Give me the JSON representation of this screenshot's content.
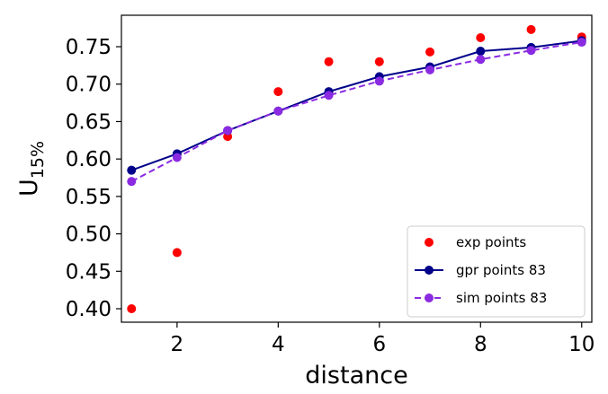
{
  "chart_data": {
    "type": "scatter",
    "xlabel": "distance",
    "ylabel": {
      "base": "U",
      "sub": "15%"
    },
    "xlim": [
      0.9,
      10.2
    ],
    "ylim": [
      0.382,
      0.792
    ],
    "xticks": [
      2,
      4,
      6,
      8,
      10
    ],
    "yticks": [
      0.4,
      0.45,
      0.5,
      0.55,
      0.6,
      0.65,
      0.7,
      0.75
    ],
    "ytick_labels": [
      "0.40",
      "0.45",
      "0.50",
      "0.55",
      "0.60",
      "0.65",
      "0.70",
      "0.75"
    ],
    "grid": false,
    "legend_position": "lower-right",
    "series": [
      {
        "name": "exp points",
        "style": "markers",
        "color": "#ff0000",
        "x": [
          1.1,
          2,
          3,
          4,
          5,
          6,
          7,
          8,
          9,
          10
        ],
        "y": [
          0.4,
          0.475,
          0.63,
          0.69,
          0.73,
          0.73,
          0.743,
          0.762,
          0.773,
          0.763
        ]
      },
      {
        "name": "gpr points 83",
        "style": "solid-line-markers",
        "color": "#00008b",
        "x": [
          1.1,
          2,
          3,
          4,
          5,
          6,
          7,
          8,
          9,
          10
        ],
        "y": [
          0.585,
          0.607,
          0.638,
          0.664,
          0.69,
          0.71,
          0.723,
          0.744,
          0.749,
          0.758
        ]
      },
      {
        "name": "sim points 83",
        "style": "dashed-line-markers",
        "color": "#8a2be2",
        "x": [
          1.1,
          2,
          3,
          4,
          5,
          6,
          7,
          8,
          9,
          10
        ],
        "y": [
          0.57,
          0.602,
          0.638,
          0.664,
          0.685,
          0.704,
          0.719,
          0.733,
          0.745,
          0.756
        ]
      }
    ]
  }
}
